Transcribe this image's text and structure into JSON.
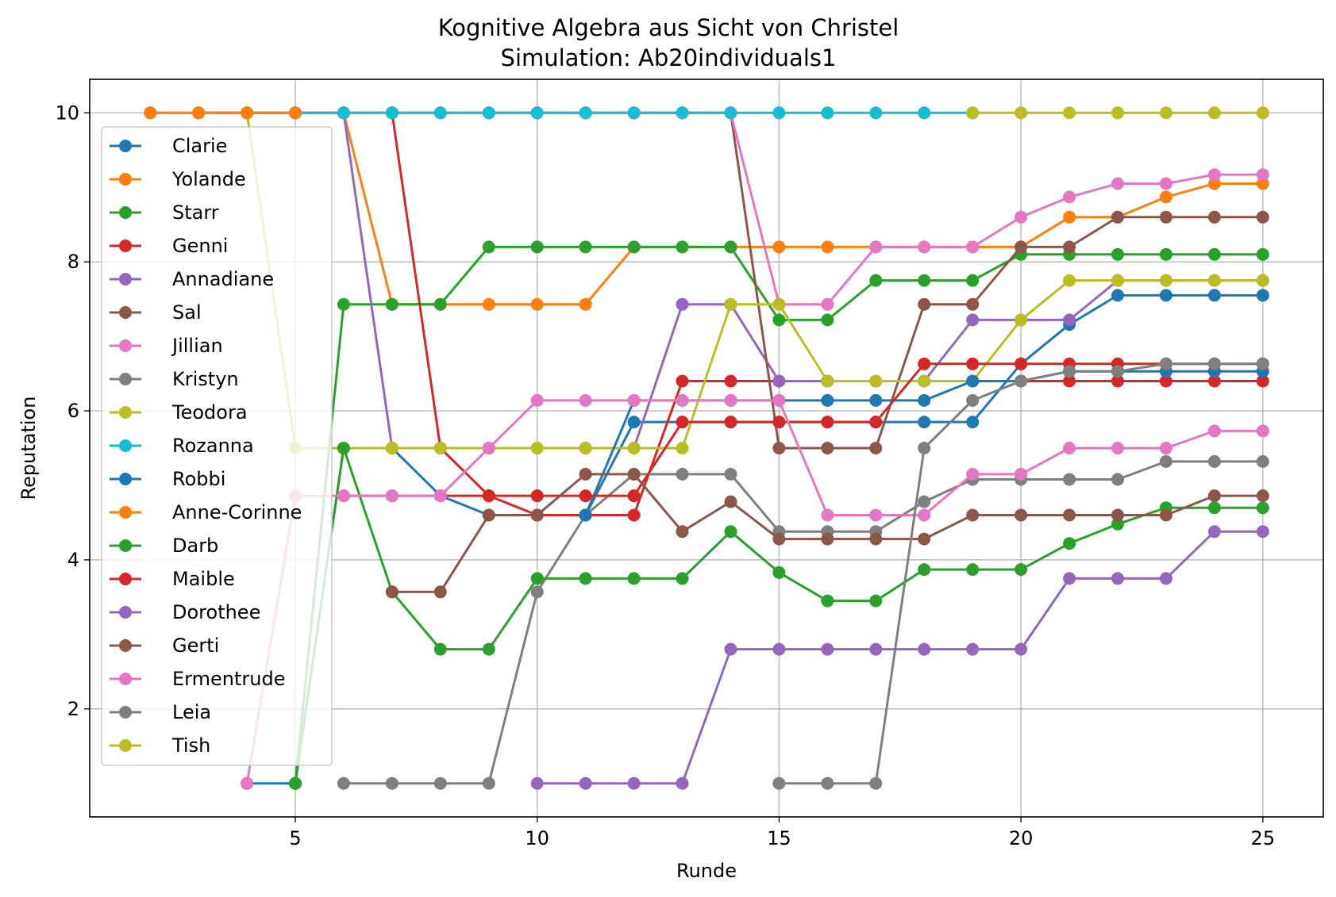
{
  "chart_data": {
    "type": "line",
    "title": "Kognitive Algebra aus Sicht von Christel",
    "subtitle": "Simulation: Ab20individuals1",
    "xlabel": "Runde",
    "ylabel": "Reputation",
    "xlim": [
      0.75,
      26.25
    ],
    "ylim": [
      0.55,
      10.45
    ],
    "xticks": [
      5,
      10,
      15,
      20,
      25
    ],
    "yticks": [
      2,
      4,
      6,
      8,
      10
    ],
    "grid": true,
    "legend_position": "upper-left",
    "series": [
      {
        "name": "Clarie",
        "color": "#1f77b4",
        "x": [
          4,
          5,
          6,
          7,
          8,
          9,
          10,
          11,
          12,
          13,
          14,
          15,
          16,
          17,
          18,
          19,
          20,
          21,
          22,
          23,
          24,
          25
        ],
        "y": [
          1,
          1,
          5.5,
          5.5,
          4.86,
          4.6,
          4.6,
          4.6,
          5.85,
          5.85,
          5.85,
          5.85,
          5.85,
          5.85,
          5.85,
          5.85,
          6.63,
          7.16,
          7.55,
          7.55,
          7.55,
          7.55
        ]
      },
      {
        "name": "Yolande",
        "color": "#ff7f0e",
        "x": [
          2,
          3,
          4,
          5,
          6,
          7,
          8,
          9,
          10,
          11,
          12,
          13,
          14,
          15,
          16,
          17,
          18,
          19,
          20,
          21,
          22,
          23,
          24,
          25
        ],
        "y": [
          10,
          10,
          10,
          10,
          10,
          7.43,
          7.43,
          7.43,
          7.43,
          7.43,
          8.2,
          8.2,
          8.2,
          8.2,
          8.2,
          8.2,
          8.2,
          8.2,
          8.2,
          8.6,
          8.6,
          8.87,
          9.05,
          9.05
        ]
      },
      {
        "name": "Starr",
        "color": "#2ca02c",
        "x": [
          5,
          6,
          7,
          8,
          9,
          10,
          11,
          12,
          13,
          14,
          15,
          16,
          17,
          18,
          19,
          20,
          21,
          22,
          23,
          24,
          25
        ],
        "y": [
          1,
          7.43,
          7.43,
          7.43,
          8.2,
          8.2,
          8.2,
          8.2,
          8.2,
          8.2,
          7.22,
          7.22,
          7.75,
          7.75,
          7.75,
          8.1,
          8.1,
          8.1,
          8.1,
          8.1,
          8.1
        ]
      },
      {
        "name": "Genni",
        "color": "#d62728",
        "x": [
          3,
          4,
          5,
          6,
          7,
          8,
          9,
          10,
          11,
          12,
          13,
          14,
          15,
          16,
          17,
          18,
          19,
          20,
          21,
          22,
          23,
          24,
          25
        ],
        "y": [
          10,
          10,
          10,
          10,
          10,
          5.5,
          4.86,
          4.6,
          4.6,
          4.6,
          6.4,
          6.4,
          6.4,
          6.4,
          6.4,
          6.4,
          6.4,
          6.4,
          6.4,
          6.4,
          6.4,
          6.4,
          6.4
        ]
      },
      {
        "name": "Annadiane",
        "color": "#9467bd",
        "x": [
          6,
          7,
          8,
          9,
          10,
          11,
          12,
          13,
          14,
          15,
          16,
          17,
          18,
          19,
          20,
          21,
          22,
          23,
          24,
          25
        ],
        "y": [
          10,
          5.5,
          5.5,
          5.5,
          5.5,
          5.5,
          5.5,
          7.43,
          7.43,
          6.4,
          6.4,
          6.4,
          6.4,
          7.22,
          7.22,
          7.22,
          7.75,
          7.75,
          7.75,
          7.75
        ]
      },
      {
        "name": "Sal",
        "color": "#8c564b",
        "x": [
          7,
          8,
          9,
          10,
          11,
          12,
          13,
          14,
          15,
          16,
          17,
          18,
          19,
          20,
          21,
          22,
          23,
          24,
          25
        ],
        "y": [
          10,
          10,
          10,
          10,
          10,
          10,
          10,
          10,
          5.5,
          5.5,
          5.5,
          7.43,
          7.43,
          8.2,
          8.2,
          8.6,
          8.6,
          8.6,
          8.6
        ]
      },
      {
        "name": "Jillian",
        "color": "#e377c2",
        "x": [
          11,
          12,
          13,
          14,
          15,
          16,
          17,
          18,
          19,
          20,
          21,
          22,
          23,
          24,
          25
        ],
        "y": [
          10,
          10,
          10,
          10,
          7.43,
          7.43,
          8.2,
          8.2,
          8.2,
          8.6,
          8.87,
          9.05,
          9.05,
          9.17,
          9.17
        ]
      },
      {
        "name": "Kristyn",
        "color": "#7f7f7f",
        "x": [
          6,
          7,
          8,
          9,
          10,
          11,
          12,
          13,
          14,
          15,
          16,
          17,
          18,
          19,
          20,
          21,
          22,
          23,
          24,
          25
        ],
        "y": [
          1,
          1,
          1,
          1,
          3.57,
          4.6,
          5.15,
          5.15,
          5.15,
          4.38,
          4.38,
          4.38,
          4.78,
          5.08,
          5.08,
          5.08,
          5.08,
          5.32,
          5.32,
          5.32
        ]
      },
      {
        "name": "Teodora",
        "color": "#bcbd22",
        "x": [
          4,
          5,
          6,
          7,
          8,
          9,
          10,
          11,
          12,
          13,
          14,
          15,
          16,
          17,
          18,
          19,
          20,
          21,
          22,
          23,
          24,
          25
        ],
        "y": [
          10,
          5.5,
          5.5,
          5.5,
          5.5,
          5.5,
          5.5,
          5.5,
          5.5,
          5.5,
          7.43,
          7.43,
          6.4,
          6.4,
          6.4,
          6.4,
          7.22,
          7.75,
          7.75,
          7.75,
          7.75,
          7.75
        ]
      },
      {
        "name": "Rozanna",
        "color": "#17becf",
        "x": [
          4,
          5,
          6,
          7,
          8,
          9,
          10,
          11,
          12,
          13,
          14,
          15,
          16,
          17,
          18,
          19
        ],
        "y": [
          10,
          10,
          10,
          10,
          10,
          10,
          10,
          10,
          10,
          10,
          10,
          10,
          10,
          10,
          10,
          10
        ]
      },
      {
        "name": "Robbi",
        "color": "#1f77b4",
        "x": [
          11,
          12,
          13,
          14,
          15,
          16,
          17,
          18,
          19,
          20,
          21,
          22,
          23,
          24,
          25
        ],
        "y": [
          4.6,
          6.14,
          6.14,
          6.14,
          6.14,
          6.14,
          6.14,
          6.14,
          6.4,
          6.4,
          6.53,
          6.53,
          6.53,
          6.53,
          6.53
        ]
      },
      {
        "name": "Anne-Corinne",
        "color": "#ff7f0e",
        "x": [
          2,
          3,
          4,
          5
        ],
        "y": [
          10,
          10,
          10,
          10
        ]
      },
      {
        "name": "Darb",
        "color": "#2ca02c",
        "x": [
          5,
          6,
          7,
          8,
          9,
          10,
          11,
          12,
          13,
          14,
          15,
          16,
          17,
          18,
          19,
          20,
          21,
          22,
          23,
          24,
          25
        ],
        "y": [
          1,
          5.5,
          3.57,
          2.8,
          2.8,
          3.75,
          3.75,
          3.75,
          3.75,
          4.38,
          3.83,
          3.45,
          3.45,
          3.87,
          3.87,
          3.87,
          4.22,
          4.48,
          4.7,
          4.7,
          4.7
        ]
      },
      {
        "name": "Maible",
        "color": "#d62728",
        "x": [
          6,
          7,
          8,
          9,
          10,
          11,
          12,
          13,
          14,
          15,
          16,
          17,
          18,
          19,
          20,
          21,
          22,
          23,
          24,
          25
        ],
        "y": [
          4.86,
          4.86,
          4.86,
          4.86,
          4.86,
          4.86,
          4.86,
          5.85,
          5.85,
          5.85,
          5.85,
          5.85,
          6.63,
          6.63,
          6.63,
          6.63,
          6.63,
          6.63,
          6.63,
          6.63
        ]
      },
      {
        "name": "Dorothee",
        "color": "#9467bd",
        "x": [
          10,
          11,
          12,
          13,
          14,
          15,
          16,
          17,
          18,
          19,
          20,
          21,
          22,
          23,
          24,
          25
        ],
        "y": [
          1,
          1,
          1,
          1,
          2.8,
          2.8,
          2.8,
          2.8,
          2.8,
          2.8,
          2.8,
          3.75,
          3.75,
          3.75,
          4.38,
          4.38
        ]
      },
      {
        "name": "Gerti",
        "color": "#8c564b",
        "x": [
          7,
          8,
          9,
          10,
          11,
          12,
          13,
          14,
          15,
          16,
          17,
          18,
          19,
          20,
          21,
          22,
          23,
          24,
          25
        ],
        "y": [
          3.57,
          3.57,
          4.6,
          4.6,
          5.15,
          5.15,
          4.38,
          4.78,
          4.28,
          4.28,
          4.28,
          4.28,
          4.6,
          4.6,
          4.6,
          4.6,
          4.6,
          4.86,
          4.86
        ]
      },
      {
        "name": "Ermentrude",
        "color": "#e377c2",
        "x": [
          4,
          5,
          6,
          7,
          8,
          9,
          10,
          11,
          12,
          13,
          14,
          15,
          16,
          17,
          18,
          19,
          20,
          21,
          22,
          23,
          24,
          25
        ],
        "y": [
          1,
          4.86,
          4.86,
          4.86,
          4.86,
          5.5,
          6.14,
          6.14,
          6.14,
          6.14,
          6.14,
          6.14,
          4.6,
          4.6,
          4.6,
          5.15,
          5.15,
          5.5,
          5.5,
          5.5,
          5.73,
          5.73
        ]
      },
      {
        "name": "Leia",
        "color": "#7f7f7f",
        "x": [
          15,
          16,
          17,
          18,
          19,
          20,
          21,
          22,
          23,
          24,
          25
        ],
        "y": [
          1,
          1,
          1,
          5.5,
          6.14,
          6.4,
          6.53,
          6.53,
          6.63,
          6.63,
          6.63
        ]
      },
      {
        "name": "Tish",
        "color": "#bcbd22",
        "x": [
          19,
          20,
          21,
          22,
          23,
          24,
          25
        ],
        "y": [
          10,
          10,
          10,
          10,
          10,
          10,
          10
        ]
      }
    ]
  }
}
